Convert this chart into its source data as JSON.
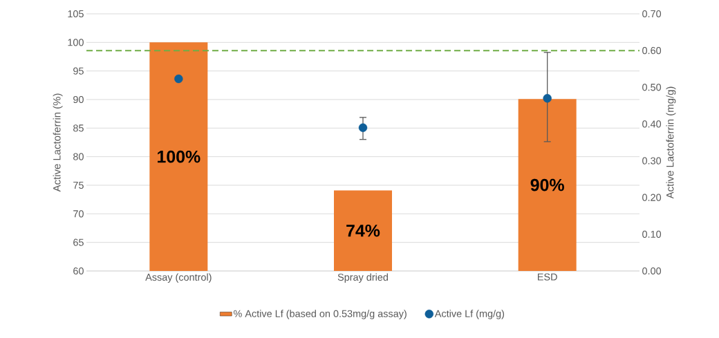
{
  "chart_data": {
    "type": "bar",
    "categories": [
      "Assay (control)",
      "Spray dried",
      "ESD"
    ],
    "series": [
      {
        "name": "% Active Lf (based on 0.53mg/g assay)",
        "color": "#ed7d31",
        "values": [
          100,
          74.1,
          90.1
        ],
        "value_labels": [
          "100%",
          "74%",
          "90%"
        ]
      },
      {
        "type": "scatter",
        "axis": "y2",
        "name": "Active Lf (mg/g)",
        "color": "#0f5f99",
        "values": [
          0.523,
          0.39,
          0.47
        ],
        "errors": [
          null,
          [
            0.358,
            0.418
          ],
          [
            0.352,
            0.595
          ]
        ]
      }
    ],
    "ylabel": "Active Lactoferrin (%)",
    "y2label": "Active Lactoferrin (mg/g)",
    "ylim": [
      60,
      105
    ],
    "yticks": [
      60,
      65,
      70,
      75,
      80,
      85,
      90,
      95,
      100,
      105
    ],
    "y2lim": [
      0,
      0.7
    ],
    "y2ticks": [
      {
        "value": 0,
        "label": "0.00"
      },
      {
        "value": 0.1,
        "label": "0.10"
      },
      {
        "value": 0.2,
        "label": "0.20"
      },
      {
        "value": 0.3,
        "label": "0.30"
      },
      {
        "value": 0.4,
        "label": "0.40"
      },
      {
        "value": 0.5,
        "label": "0.50"
      },
      {
        "value": 0.6,
        "label": "0.60"
      },
      {
        "value": 0.7,
        "label": "0.70"
      }
    ],
    "ref_lines": [
      {
        "axis": "y2",
        "value": 0.6,
        "color": "#70ad47",
        "line_style": "dashed"
      }
    ],
    "grid": "y",
    "legend": "bottom"
  }
}
